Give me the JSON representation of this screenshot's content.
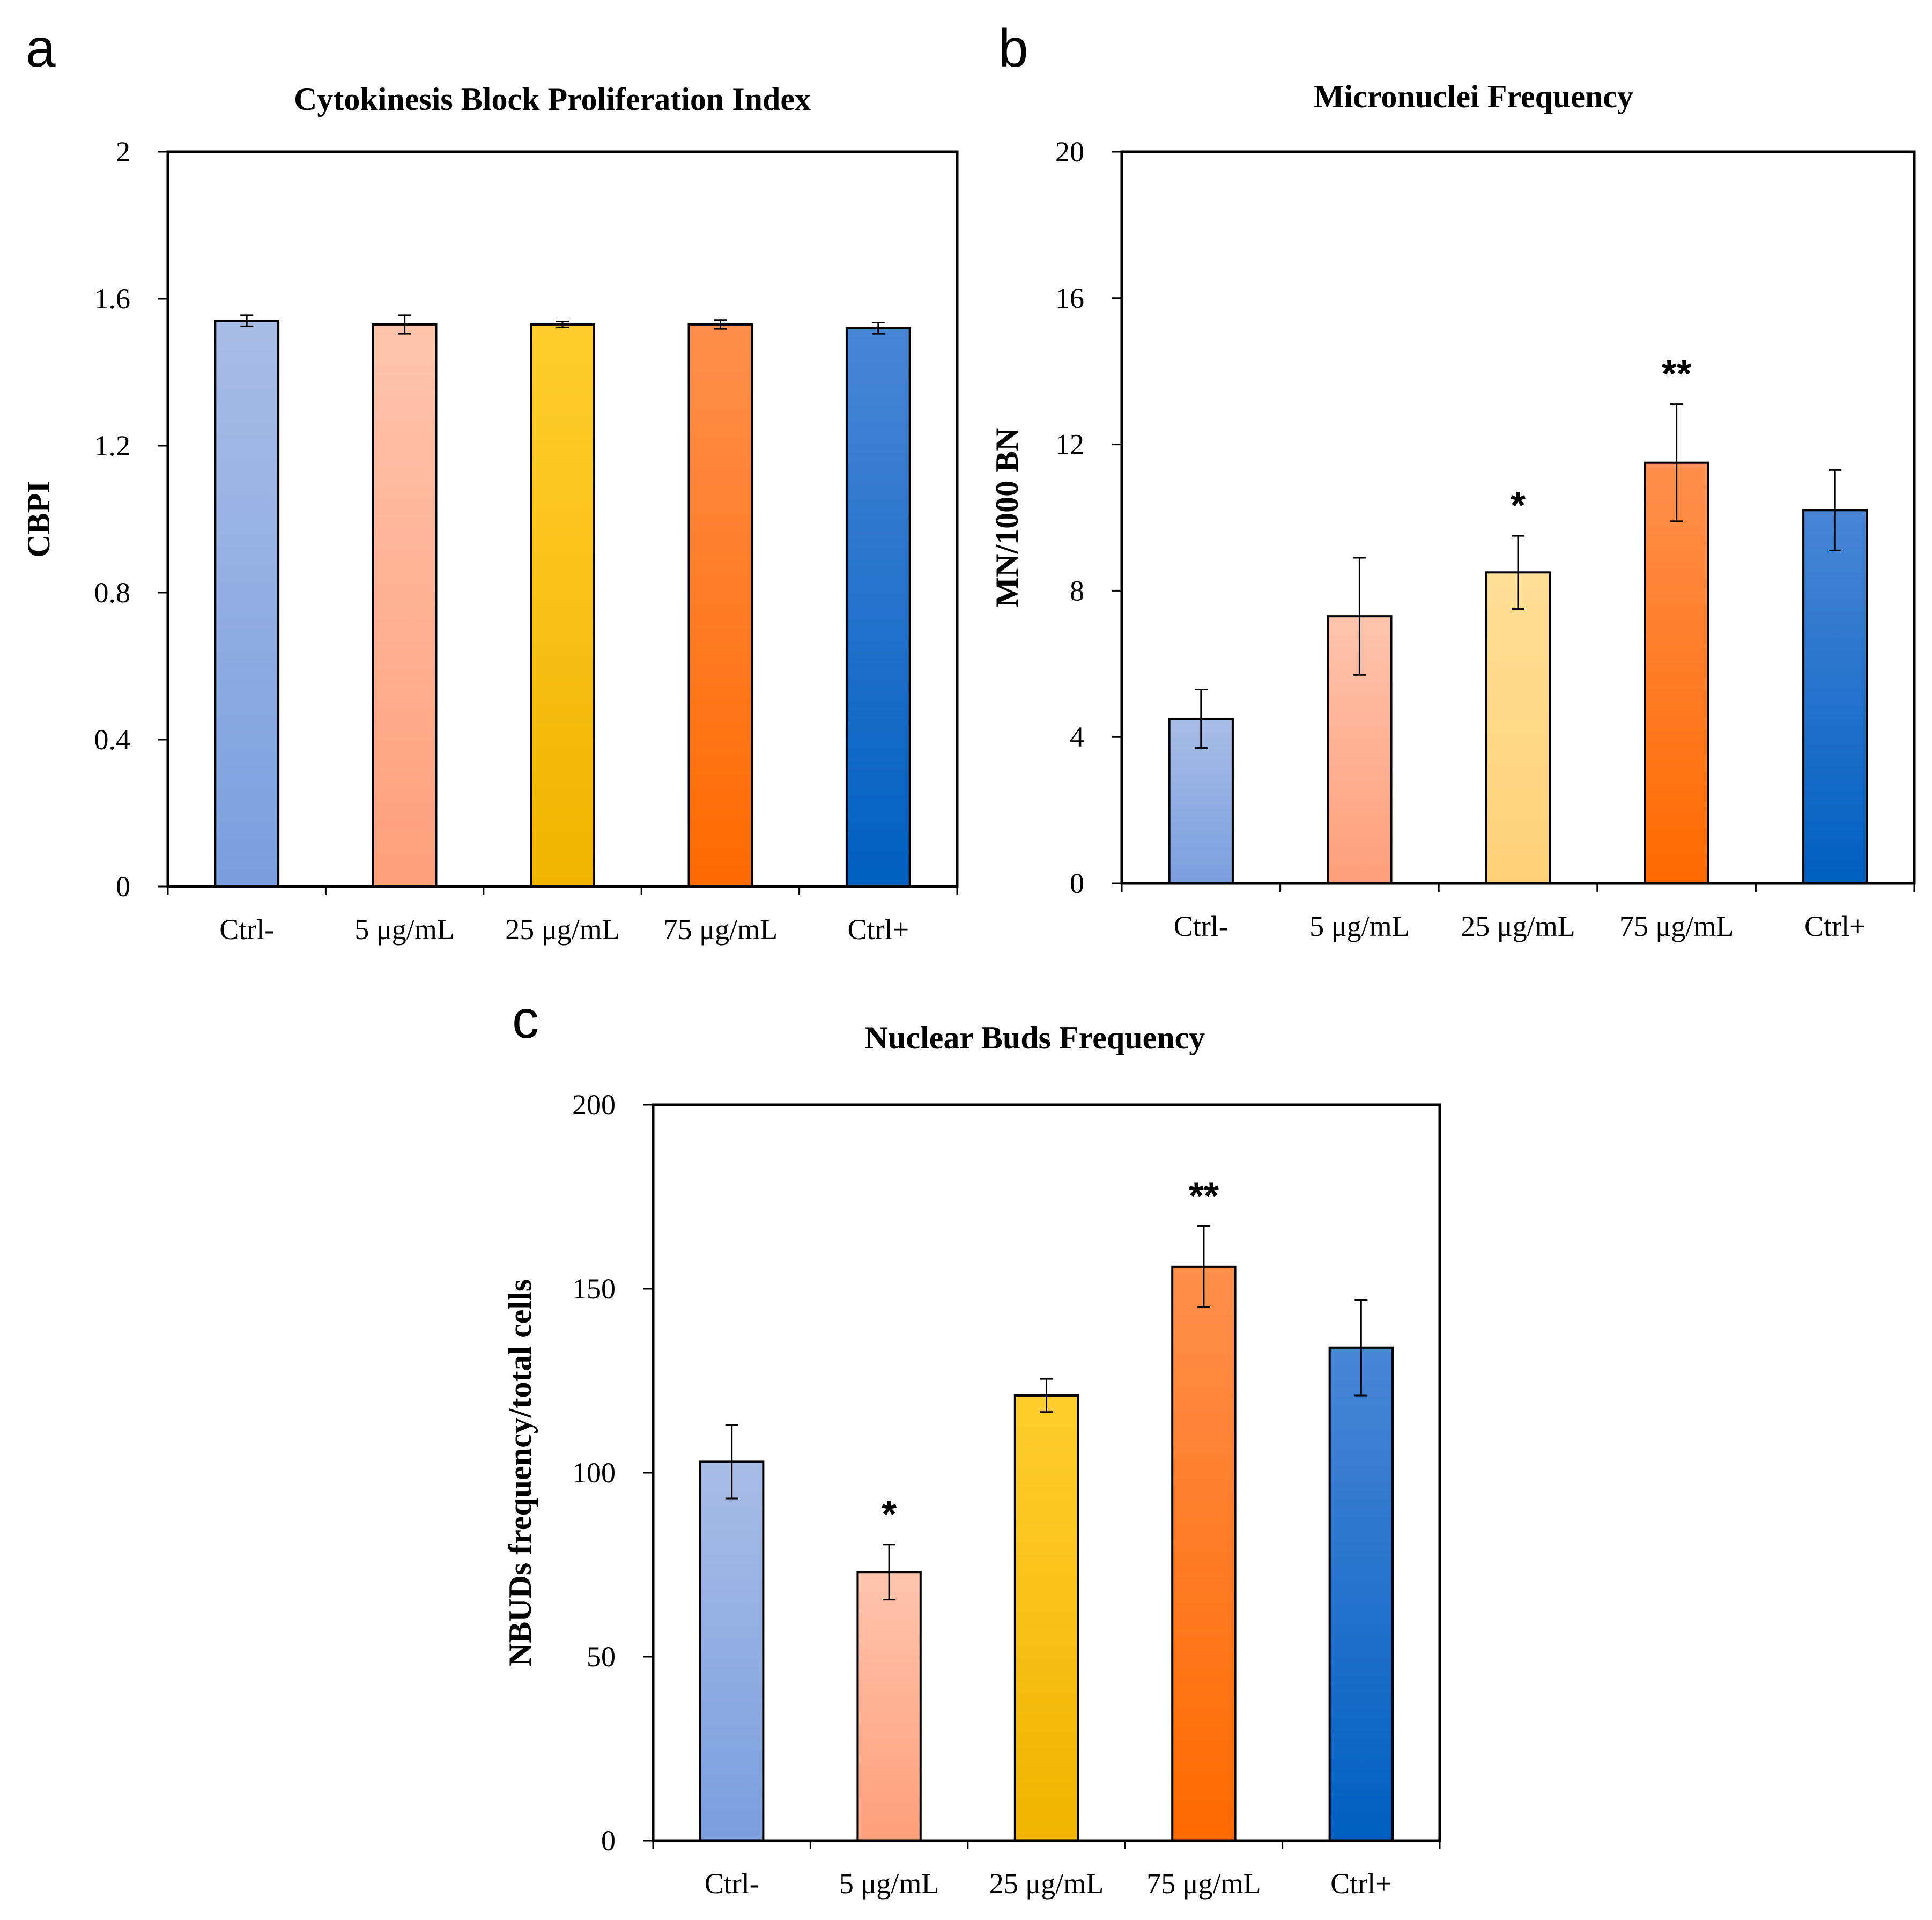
{
  "gradients": [
    {
      "id": "g-lightblue",
      "top": "#a9bde6",
      "bottom": "#7a9ede"
    },
    {
      "id": "g-salmon",
      "top": "#ffc4ad",
      "bottom": "#ff9f7c"
    },
    {
      "id": "g-yellow",
      "top": "#ffce2e",
      "bottom": "#f0b400"
    },
    {
      "id": "g-orange",
      "top": "#ff8f4d",
      "bottom": "#ff6a00"
    },
    {
      "id": "g-blue",
      "top": "#4a86d6",
      "bottom": "#005fc0"
    },
    {
      "id": "g-paleyellow",
      "top": "#ffde96",
      "bottom": "#ffd27a"
    }
  ],
  "chart_data": [
    {
      "panel": "a",
      "type": "bar",
      "title": "Cytokinesis Block Proliferation Index",
      "xlabel": "",
      "ylabel": "CBPI",
      "ylim": [
        0,
        2
      ],
      "yticks": [
        0,
        0.4,
        0.8,
        1.2,
        1.6,
        2
      ],
      "ytick_labels": [
        "0",
        "0.4",
        "0.8",
        "1.2",
        "1.6",
        "2"
      ],
      "categories": [
        "Ctrl-",
        "5 μg/mL",
        "25 μg/mL",
        "75 μg/mL",
        "Ctrl+"
      ],
      "values": [
        1.54,
        1.53,
        1.53,
        1.53,
        1.52
      ],
      "errors": [
        0.015,
        0.025,
        0.008,
        0.012,
        0.015
      ],
      "significance": [
        "",
        "",
        "",
        "",
        ""
      ],
      "bar_colors": [
        "g-lightblue",
        "g-salmon",
        "g-yellow",
        "g-orange",
        "g-blue"
      ],
      "grid": false
    },
    {
      "panel": "b",
      "type": "bar",
      "title": "Micronuclei Frequency",
      "xlabel": "",
      "ylabel": "MN/1000 BN",
      "ylim": [
        0,
        20
      ],
      "yticks": [
        0,
        4,
        8,
        12,
        16,
        20
      ],
      "ytick_labels": [
        "0",
        "4",
        "8",
        "12",
        "16",
        "20"
      ],
      "categories": [
        "Ctrl-",
        "5 μg/mL",
        "25 μg/mL",
        "75 μg/mL",
        "Ctrl+"
      ],
      "values": [
        4.5,
        7.3,
        8.5,
        11.5,
        10.2
      ],
      "errors": [
        0.8,
        1.6,
        1.0,
        1.6,
        1.1
      ],
      "significance": [
        "",
        "",
        "*",
        "**",
        ""
      ],
      "bar_colors": [
        "g-lightblue",
        "g-salmon",
        "g-paleyellow",
        "g-orange",
        "g-blue"
      ],
      "grid": false
    },
    {
      "panel": "c",
      "type": "bar",
      "title": "Nuclear Buds Frequency",
      "xlabel": "",
      "ylabel": "NBUDs frequency/total cells",
      "ylim": [
        0,
        200
      ],
      "yticks": [
        0,
        50,
        100,
        150,
        200
      ],
      "ytick_labels": [
        "0",
        "50",
        "100",
        "150",
        "200"
      ],
      "categories": [
        "Ctrl-",
        "5 μg/mL",
        "25 μg/mL",
        "75 μg/mL",
        "Ctrl+"
      ],
      "values": [
        103,
        73,
        121,
        156,
        134
      ],
      "errors": [
        10,
        7.5,
        4.5,
        11,
        13
      ],
      "significance": [
        "",
        "*",
        "",
        "**",
        ""
      ],
      "bar_colors": [
        "g-lightblue",
        "g-salmon",
        "g-yellow",
        "g-orange",
        "g-blue"
      ],
      "grid": false
    }
  ]
}
